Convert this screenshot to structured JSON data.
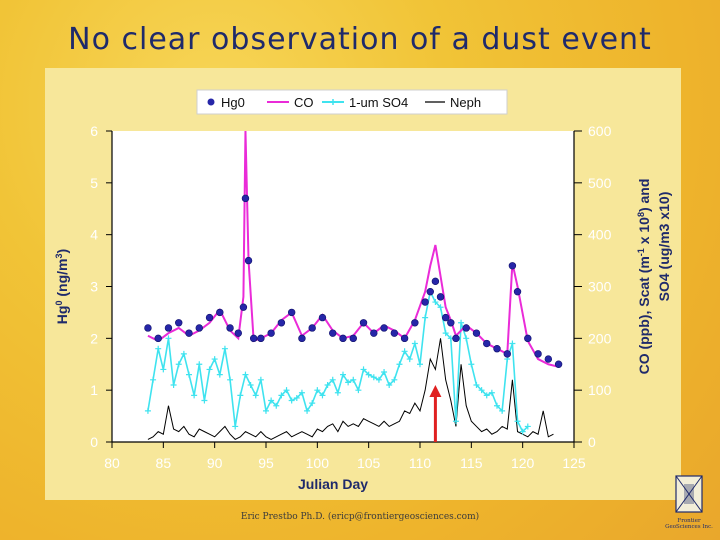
{
  "slide": {
    "title": "No clear observation of a dust event",
    "footer": "Eric Prestbo Ph.D. (ericp@frontiergeosciences.com)",
    "logo_text_1": "Frontier",
    "logo_text_2": "GeoSciences Inc."
  },
  "colors": {
    "hg0": "#2626a8",
    "co": "#ea2bd8",
    "so4": "#3fe3ef",
    "neph": "#000000",
    "arrow": "#e02020",
    "plot_bg": "#ffffff",
    "axis_label": "#1f2a6b"
  },
  "chart_data": {
    "type": "line",
    "title": "",
    "xlabel": "Julian Day",
    "ylabel_left": "Hg0 (ng/m3)",
    "ylabel_left_parts": [
      "Hg",
      "0",
      " (ng/m",
      "3",
      ")"
    ],
    "ylabel_right_line1": "CO (ppb), Scat (m-1 x 108) and",
    "ylabel_right_line1_parts": [
      "CO (ppb), Scat (m",
      "-1",
      " x 10",
      "8",
      ") and"
    ],
    "ylabel_right_line2": "SO4 (ug/m3 x10)",
    "xlim": [
      80,
      125
    ],
    "ylim_left": [
      0,
      6
    ],
    "ylim_right": [
      0,
      600
    ],
    "x_ticks": [
      "80",
      "85",
      "90",
      "95",
      "100",
      "105",
      "110",
      "115",
      "120",
      "125"
    ],
    "y_left_ticks": [
      "0",
      "1",
      "2",
      "3",
      "4",
      "5",
      "6"
    ],
    "y_right_ticks": [
      "0",
      "100",
      "200",
      "300",
      "400",
      "500",
      "600"
    ],
    "legend": {
      "placement": "top",
      "entries": [
        "Hg0",
        "CO",
        "1-um SO4",
        "Neph"
      ]
    },
    "series": [
      {
        "name": "Hg0",
        "axis": "left",
        "style": "dots",
        "x": [
          83.5,
          84.5,
          85.5,
          86.5,
          87.5,
          88.5,
          89.5,
          90.5,
          91.5,
          92.3,
          92.8,
          93.0,
          93.3,
          93.8,
          94.5,
          95.5,
          96.5,
          97.5,
          98.5,
          99.5,
          100.5,
          101.5,
          102.5,
          103.5,
          104.5,
          105.5,
          106.5,
          107.5,
          108.5,
          109.5,
          110.5,
          111.0,
          111.5,
          112.0,
          112.5,
          113.0,
          113.5,
          114.5,
          115.5,
          116.5,
          117.5,
          118.5,
          119.0,
          119.5,
          120.5,
          121.5,
          122.5,
          123.5
        ],
        "y": [
          2.2,
          2.0,
          2.2,
          2.3,
          2.1,
          2.2,
          2.4,
          2.5,
          2.2,
          2.1,
          2.6,
          4.7,
          3.5,
          2.0,
          2.0,
          2.1,
          2.3,
          2.5,
          2.0,
          2.2,
          2.4,
          2.1,
          2.0,
          2.0,
          2.3,
          2.1,
          2.2,
          2.1,
          2.0,
          2.3,
          2.7,
          2.9,
          3.1,
          2.8,
          2.4,
          2.3,
          2.0,
          2.2,
          2.1,
          1.9,
          1.8,
          1.7,
          3.4,
          2.9,
          2.0,
          1.7,
          1.6,
          1.5
        ]
      },
      {
        "name": "CO",
        "axis": "right",
        "style": "line",
        "x": [
          83.5,
          84.5,
          85.5,
          86.5,
          87.5,
          88.5,
          89.5,
          90.5,
          91.5,
          92.3,
          92.8,
          93.0,
          93.3,
          93.8,
          94.5,
          95.5,
          96.5,
          97.5,
          98.5,
          99.5,
          100.5,
          101.5,
          102.5,
          103.5,
          104.5,
          105.5,
          106.5,
          107.5,
          108.5,
          109.5,
          110.5,
          111.0,
          111.5,
          112.0,
          112.5,
          113.0,
          113.5,
          114.5,
          115.5,
          116.5,
          117.5,
          118.5,
          119.0,
          119.5,
          120.5,
          121.5,
          122.5,
          123.5
        ],
        "y": [
          205,
          195,
          210,
          220,
          205,
          215,
          230,
          255,
          215,
          200,
          280,
          600,
          350,
          195,
          200,
          210,
          235,
          250,
          205,
          220,
          245,
          215,
          200,
          205,
          230,
          210,
          225,
          215,
          200,
          235,
          290,
          340,
          380,
          320,
          260,
          235,
          205,
          225,
          210,
          190,
          180,
          170,
          345,
          300,
          195,
          160,
          150,
          145
        ]
      },
      {
        "name": "1-um SO4",
        "axis": "right",
        "style": "line-markers",
        "x": [
          83.5,
          84.0,
          84.5,
          85.0,
          85.5,
          86.0,
          86.5,
          87.0,
          87.5,
          88.0,
          88.5,
          89.0,
          89.5,
          90.0,
          90.5,
          91.0,
          91.5,
          92.0,
          92.5,
          93.0,
          93.5,
          94.0,
          94.5,
          95.0,
          95.5,
          96.0,
          96.5,
          97.0,
          97.5,
          98.0,
          98.5,
          99.0,
          99.5,
          100.0,
          100.5,
          101.0,
          101.5,
          102.0,
          102.5,
          103.0,
          103.5,
          104.0,
          104.5,
          105.0,
          105.5,
          106.0,
          106.5,
          107.0,
          107.5,
          108.0,
          108.5,
          109.0,
          109.5,
          110.0,
          110.5,
          111.0,
          111.5,
          112.0,
          112.5,
          113.0,
          113.5,
          114.0,
          114.5,
          115.0,
          115.5,
          116.0,
          116.5,
          117.0,
          117.5,
          118.0,
          118.5,
          119.0,
          119.5,
          120.0,
          120.5
        ],
        "y": [
          60,
          120,
          180,
          140,
          200,
          110,
          150,
          170,
          130,
          90,
          150,
          80,
          140,
          160,
          130,
          180,
          120,
          30,
          90,
          130,
          110,
          90,
          120,
          60,
          80,
          70,
          90,
          100,
          80,
          85,
          95,
          60,
          75,
          100,
          90,
          110,
          120,
          95,
          130,
          115,
          120,
          100,
          140,
          130,
          125,
          120,
          135,
          110,
          120,
          150,
          175,
          160,
          190,
          150,
          240,
          290,
          270,
          260,
          210,
          200,
          40,
          230,
          200,
          150,
          110,
          100,
          90,
          95,
          70,
          60,
          160,
          190,
          40,
          20,
          30
        ]
      },
      {
        "name": "Neph",
        "axis": "right",
        "style": "line",
        "x": [
          83.5,
          84.0,
          84.5,
          85.0,
          85.5,
          86.0,
          86.5,
          87.0,
          87.5,
          88.0,
          88.5,
          89.0,
          89.5,
          90.0,
          90.5,
          91.0,
          91.5,
          92.0,
          92.5,
          93.0,
          93.5,
          94.0,
          94.5,
          95.0,
          95.5,
          96.0,
          96.5,
          97.0,
          97.5,
          98.0,
          98.5,
          99.0,
          99.5,
          100.0,
          100.5,
          101.0,
          101.5,
          102.0,
          102.5,
          103.0,
          103.5,
          104.0,
          104.5,
          105.0,
          105.5,
          106.0,
          106.5,
          107.0,
          107.5,
          108.0,
          108.5,
          109.0,
          109.5,
          110.0,
          110.5,
          111.0,
          111.5,
          112.0,
          112.5,
          113.0,
          113.5,
          114.0,
          114.5,
          115.0,
          115.5,
          116.0,
          116.5,
          117.0,
          117.5,
          118.0,
          118.5,
          119.0,
          119.5,
          120.0,
          120.5,
          121.0,
          121.5,
          122.0,
          122.5,
          123.0
        ],
        "y": [
          5,
          10,
          20,
          15,
          70,
          25,
          20,
          30,
          15,
          10,
          25,
          20,
          15,
          10,
          20,
          30,
          15,
          5,
          10,
          20,
          15,
          10,
          20,
          10,
          5,
          10,
          15,
          20,
          10,
          15,
          20,
          15,
          10,
          25,
          20,
          30,
          35,
          20,
          40,
          30,
          35,
          30,
          45,
          40,
          35,
          30,
          40,
          30,
          35,
          40,
          60,
          55,
          75,
          60,
          100,
          160,
          140,
          200,
          120,
          80,
          30,
          150,
          70,
          40,
          30,
          20,
          25,
          15,
          20,
          30,
          25,
          120,
          20,
          15,
          10,
          20,
          15,
          60,
          10,
          15
        ]
      }
    ],
    "annotation": {
      "type": "arrow",
      "x": 111.5,
      "from_y_right": 0,
      "to_y_right": 110
    }
  }
}
